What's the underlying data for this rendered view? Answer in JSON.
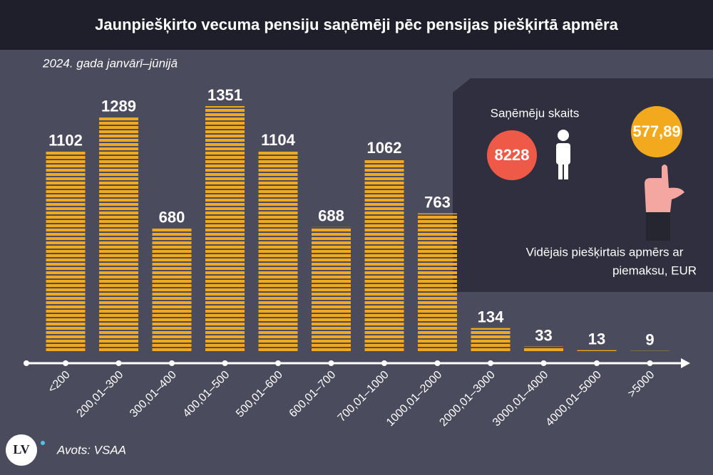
{
  "chart_data": {
    "type": "bar",
    "title": "Jaunpiešķirto vecuma pensiju saņēmēji pēc pensijas piešķirtā apmēra",
    "subtitle": "2024. gada janvārī–jūnijā",
    "categories": [
      "<200",
      "200,01–300",
      "300,01–400",
      "400,01–500",
      "500,01–600",
      "600,01–700",
      "700,01–1000",
      "1000,01–2000",
      "2000,01–3000",
      "3000,01–4000",
      "4000,01–5000",
      ">5000"
    ],
    "values": [
      1102,
      1289,
      680,
      1351,
      1104,
      688,
      1062,
      763,
      134,
      33,
      13,
      9
    ],
    "color": "#f2a91d"
  },
  "panel": {
    "count_label": "Saņēmēju skaits",
    "count": 8228,
    "average": {
      "value": 577.89,
      "label": "577,89"
    },
    "average_label_line1": "Vidējais piešķirtais apmērs ar",
    "average_label_line2": "piemaksu, EUR"
  },
  "footer": {
    "logo": "LV",
    "source": "Avots: VSAA"
  }
}
